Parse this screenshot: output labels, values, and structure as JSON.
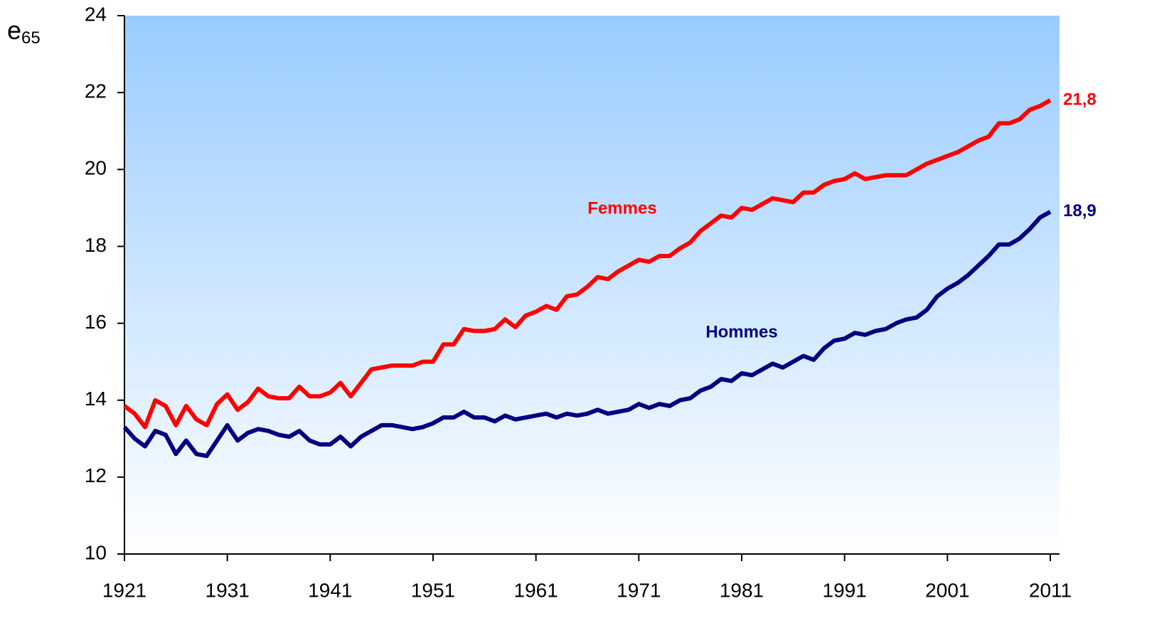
{
  "chart_data": {
    "type": "line",
    "y_label": "e",
    "y_label_sub": "65",
    "x": [
      1921,
      1922,
      1923,
      1924,
      1925,
      1926,
      1927,
      1928,
      1929,
      1930,
      1931,
      1932,
      1933,
      1934,
      1935,
      1936,
      1937,
      1938,
      1939,
      1940,
      1941,
      1942,
      1943,
      1944,
      1945,
      1946,
      1947,
      1948,
      1949,
      1950,
      1951,
      1952,
      1953,
      1954,
      1955,
      1956,
      1957,
      1958,
      1959,
      1960,
      1961,
      1962,
      1963,
      1964,
      1965,
      1966,
      1967,
      1968,
      1969,
      1970,
      1971,
      1972,
      1973,
      1974,
      1975,
      1976,
      1977,
      1978,
      1979,
      1980,
      1981,
      1982,
      1983,
      1984,
      1985,
      1986,
      1987,
      1988,
      1989,
      1990,
      1991,
      1992,
      1993,
      1994,
      1995,
      1996,
      1997,
      1998,
      1999,
      2000,
      2001,
      2002,
      2003,
      2004,
      2005,
      2006,
      2007,
      2008,
      2009,
      2010,
      2011
    ],
    "series": [
      {
        "name": "Femmes",
        "color": "#ff0000",
        "values": [
          13.85,
          13.65,
          13.3,
          14.0,
          13.85,
          13.35,
          13.85,
          13.5,
          13.35,
          13.9,
          14.15,
          13.75,
          13.95,
          14.3,
          14.1,
          14.05,
          14.05,
          14.35,
          14.1,
          14.1,
          14.2,
          14.45,
          14.1,
          14.45,
          14.8,
          14.85,
          14.9,
          14.9,
          14.9,
          15.0,
          15.0,
          15.45,
          15.45,
          15.85,
          15.8,
          15.8,
          15.85,
          16.1,
          15.9,
          16.2,
          16.3,
          16.45,
          16.35,
          16.7,
          16.75,
          16.95,
          17.2,
          17.15,
          17.35,
          17.5,
          17.65,
          17.6,
          17.75,
          17.75,
          17.95,
          18.1,
          18.4,
          18.6,
          18.8,
          18.75,
          19.0,
          18.95,
          19.1,
          19.25,
          19.2,
          19.15,
          19.4,
          19.4,
          19.6,
          19.7,
          19.75,
          19.9,
          19.75,
          19.8,
          19.85,
          19.85,
          19.85,
          20.0,
          20.15,
          20.25,
          20.35,
          20.45,
          20.6,
          20.75,
          20.85,
          21.2,
          21.2,
          21.3,
          21.55,
          21.65,
          21.8
        ],
        "value_labels": [
          null,
          null,
          null,
          null,
          null,
          null,
          null,
          null,
          null,
          null,
          null,
          null,
          null,
          null,
          null,
          null,
          null,
          null,
          null,
          null,
          null,
          null,
          null,
          null,
          null,
          null,
          null,
          null,
          null,
          null,
          null,
          null,
          null,
          null,
          null,
          null,
          null,
          null,
          null,
          null,
          null,
          null,
          null,
          null,
          null,
          null,
          null,
          null,
          null,
          null,
          null,
          null,
          null,
          null,
          null,
          null,
          null,
          null,
          null,
          null,
          null,
          null,
          null,
          null,
          null,
          null,
          null,
          null,
          null,
          null,
          null,
          null,
          null,
          null,
          null,
          null,
          null,
          null,
          null,
          null,
          null,
          null,
          null,
          null,
          null,
          null,
          null,
          null,
          null,
          null,
          "21,8"
        ]
      },
      {
        "name": "Hommes",
        "color": "#000080",
        "values": [
          13.3,
          13.0,
          12.8,
          13.2,
          13.1,
          12.6,
          12.95,
          12.6,
          12.55,
          12.95,
          13.35,
          12.95,
          13.15,
          13.25,
          13.2,
          13.1,
          13.05,
          13.2,
          12.95,
          12.85,
          12.85,
          13.05,
          12.8,
          13.05,
          13.2,
          13.35,
          13.35,
          13.3,
          13.25,
          13.3,
          13.4,
          13.55,
          13.55,
          13.7,
          13.55,
          13.55,
          13.45,
          13.6,
          13.5,
          13.55,
          13.6,
          13.65,
          13.55,
          13.65,
          13.6,
          13.65,
          13.75,
          13.65,
          13.7,
          13.75,
          13.9,
          13.8,
          13.9,
          13.85,
          14.0,
          14.05,
          14.25,
          14.35,
          14.55,
          14.5,
          14.7,
          14.65,
          14.8,
          14.95,
          14.85,
          15.0,
          15.15,
          15.05,
          15.35,
          15.55,
          15.6,
          15.75,
          15.7,
          15.8,
          15.85,
          16.0,
          16.1,
          16.15,
          16.35,
          16.7,
          16.9,
          17.05,
          17.25,
          17.5,
          17.75,
          18.05,
          18.05,
          18.2,
          18.45,
          18.75,
          18.9
        ],
        "value_labels": [
          null,
          null,
          null,
          null,
          null,
          null,
          null,
          null,
          null,
          null,
          null,
          null,
          null,
          null,
          null,
          null,
          null,
          null,
          null,
          null,
          null,
          null,
          null,
          null,
          null,
          null,
          null,
          null,
          null,
          null,
          null,
          null,
          null,
          null,
          null,
          null,
          null,
          null,
          null,
          null,
          null,
          null,
          null,
          null,
          null,
          null,
          null,
          null,
          null,
          null,
          null,
          null,
          null,
          null,
          null,
          null,
          null,
          null,
          null,
          null,
          null,
          null,
          null,
          null,
          null,
          null,
          null,
          null,
          null,
          null,
          null,
          null,
          null,
          null,
          null,
          null,
          null,
          null,
          null,
          null,
          null,
          null,
          null,
          null,
          null,
          null,
          null,
          null,
          null,
          null,
          "18,9"
        ]
      }
    ],
    "xlim": [
      1921,
      2011
    ],
    "xticks": [
      1921,
      1931,
      1941,
      1951,
      1961,
      1971,
      1981,
      1991,
      2001,
      2011
    ],
    "ylim": [
      10,
      24
    ],
    "yticks": [
      10,
      12,
      14,
      16,
      18,
      20,
      22,
      24
    ]
  }
}
